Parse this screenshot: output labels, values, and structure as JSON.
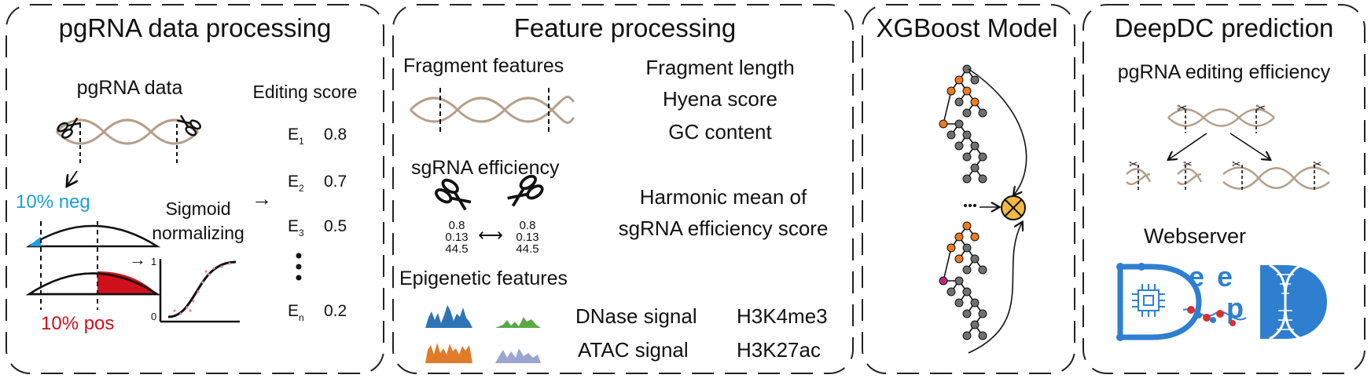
{
  "panels": {
    "pgrna": {
      "title": "pgRNA data processing",
      "data_label": "pgRNA data",
      "editing_score_label": "Editing score",
      "neg_label": "10% neg",
      "pos_label": "10% pos",
      "sigmoid_line1": "Sigmoid",
      "sigmoid_line2": "normalizing",
      "sigmoid_y_top": "1",
      "sigmoid_y_bottom": "0",
      "scores": [
        {
          "letter": "E",
          "sub": "1",
          "value": "0.8"
        },
        {
          "letter": "E",
          "sub": "2",
          "value": "0.7"
        },
        {
          "letter": "E",
          "sub": "3",
          "value": "0.5"
        },
        {
          "letter": "E",
          "sub": "n",
          "value": "0.2"
        }
      ],
      "colors": {
        "neg": "#1aa0e0",
        "pos": "#d0101a",
        "dna": "#b59f8a"
      }
    },
    "feature": {
      "title": "Feature processing",
      "fragment_heading": "Fragment features",
      "fragment_items": [
        "Fragment length",
        "Hyena score",
        "GC content"
      ],
      "sgrna_heading": "sgRNA efficiency",
      "sg_left_values": [
        "0.8",
        "0.13",
        "44.5"
      ],
      "sg_right_values": [
        "0.8",
        "0.13",
        "44.5"
      ],
      "harmonic_line1": "Harmonic mean of",
      "harmonic_line2": "sgRNA efficiency score",
      "epigenetic_heading": "Epigenetic features",
      "signals": [
        {
          "name": "DNase signal",
          "mark": "H3K4me3"
        },
        {
          "name": "ATAC signal",
          "mark": "H3K27ac"
        }
      ],
      "colors": {
        "blue": "#2e74b5",
        "green": "#5aa845",
        "orange": "#e07b2a",
        "lavender": "#9aa6cf"
      }
    },
    "xgboost": {
      "title": "XGBoost Model",
      "colors": {
        "node": "#707070",
        "hot": "#f07a22",
        "magenta": "#c0287a",
        "sum": "#f5b840"
      }
    },
    "deepdc": {
      "title": "DeepDC prediction",
      "subtitle": "pgRNA editing efficiency",
      "webserver_label": "Webserver",
      "logo_letters": [
        "e",
        "e",
        "p"
      ],
      "colors": {
        "logo": "#2e7fd0",
        "bead": "#d83030"
      }
    }
  }
}
